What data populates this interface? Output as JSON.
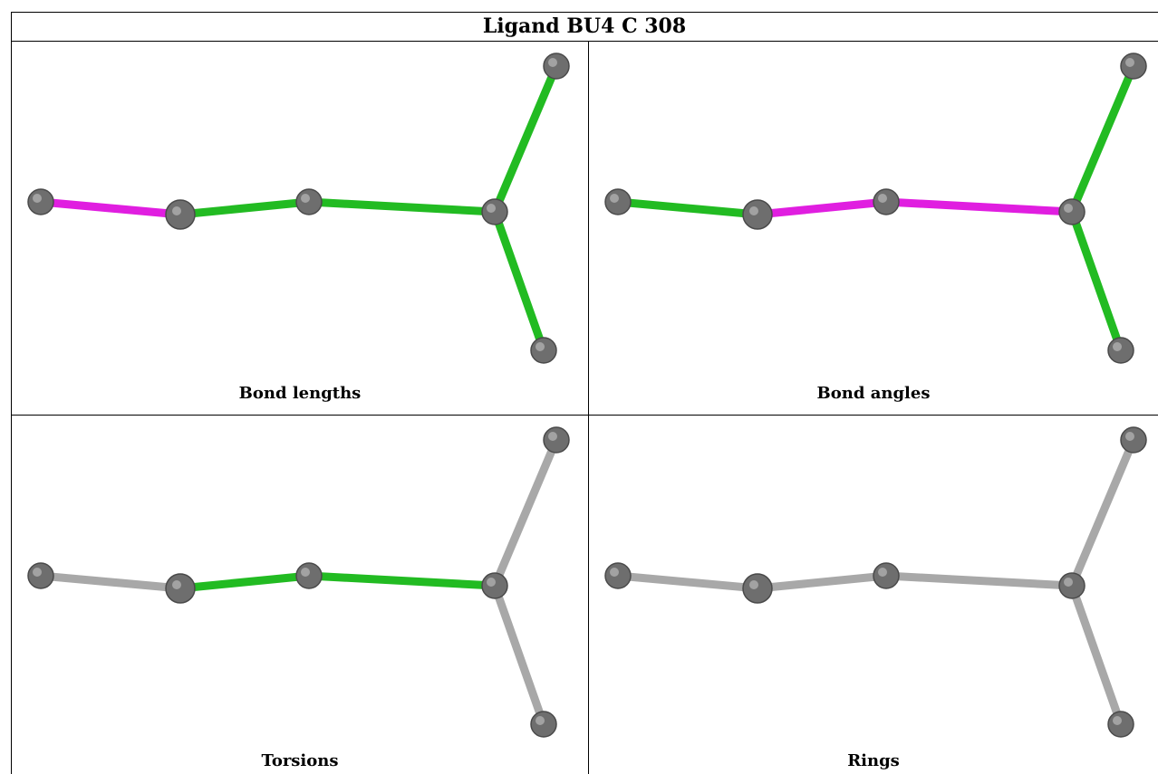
{
  "title": "Ligand BU4 C 308",
  "colors": {
    "outlier": "#e01ee0",
    "ok": "#22bb22",
    "neutral": "#a8a8a8",
    "atom": "#6e6e6e"
  },
  "atoms": [
    "a1",
    "a2",
    "a3",
    "a4",
    "a5",
    "a6"
  ],
  "bonds": [
    [
      "a1",
      "a2"
    ],
    [
      "a2",
      "a3"
    ],
    [
      "a3",
      "a4"
    ],
    [
      "a4",
      "a5"
    ],
    [
      "a4",
      "a6"
    ]
  ],
  "panels": [
    {
      "caption": "Bond lengths",
      "bond_status": [
        "outlier",
        "ok",
        "ok",
        "ok",
        "ok"
      ]
    },
    {
      "caption": "Bond angles",
      "bond_status": [
        "ok",
        "outlier",
        "outlier",
        "ok",
        "ok"
      ]
    },
    {
      "caption": "Torsions",
      "bond_status": [
        "neutral",
        "ok",
        "ok",
        "neutral",
        "neutral"
      ]
    },
    {
      "caption": "Rings",
      "bond_status": [
        "neutral",
        "neutral",
        "neutral",
        "neutral",
        "neutral"
      ]
    }
  ]
}
